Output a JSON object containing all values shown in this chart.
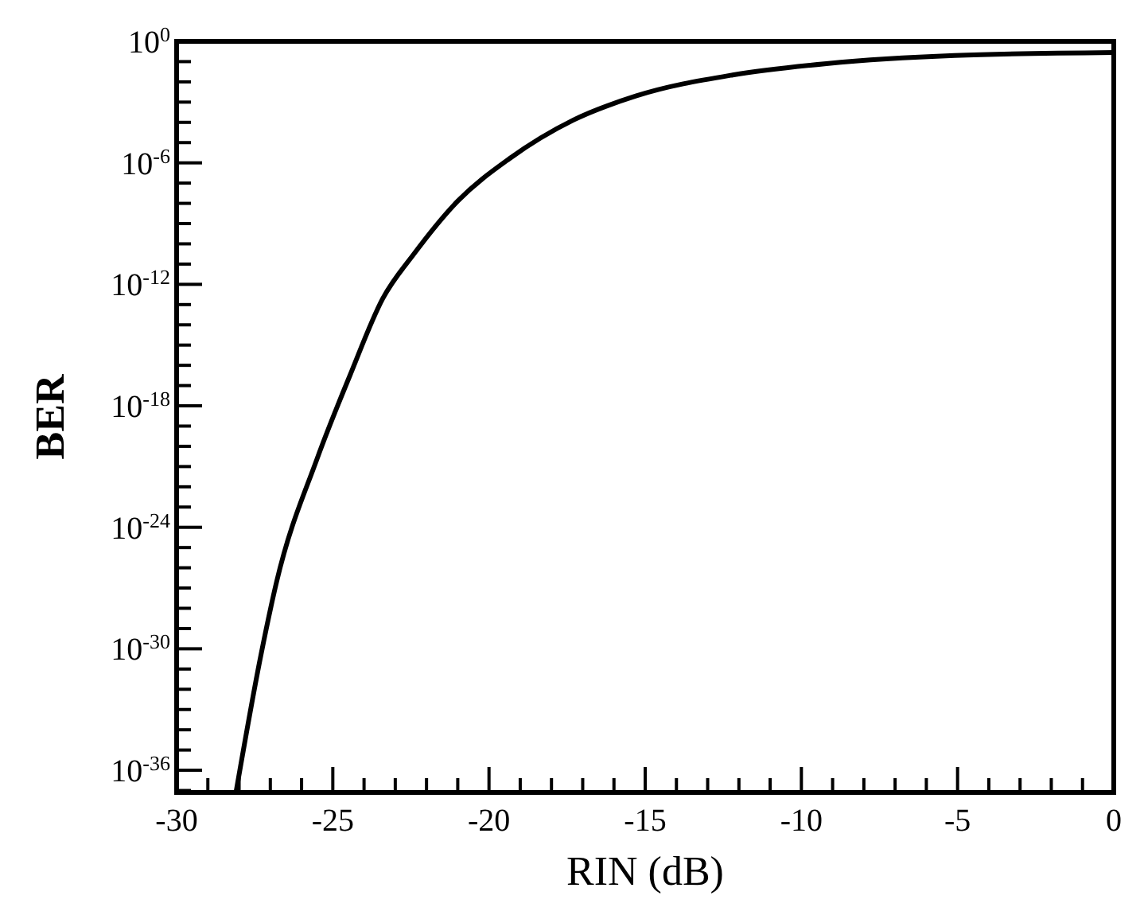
{
  "chart_data": {
    "type": "line",
    "xlabel": "RIN (dB)",
    "ylabel": "BER",
    "log": "y",
    "grid": false,
    "marker": "none",
    "line_style": "solid",
    "x": [
      -28.1,
      -27.3,
      -26.8,
      -25.5,
      -24.45,
      -23.4,
      -22.4,
      -21.0,
      -19.35,
      -17.3,
      -15.3,
      -12.2,
      -9.2,
      -5.1,
      0
    ],
    "series": [
      {
        "color": "#000000",
        "values": [
          8e-38,
          5e-31,
          2e-27,
          2.5e-21,
          3.2e-17,
          2e-13,
          3.2e-11,
          1.3e-08,
          1.6e-06,
          0.00013,
          0.002,
          0.022,
          0.08,
          0.2,
          0.28
        ]
      }
    ],
    "xlim": [
      -30,
      0
    ],
    "ylim": [
      8e-38,
      1
    ],
    "xticks": [
      -30,
      {
        "value": -29,
        "label": null
      },
      {
        "value": -28,
        "label": null
      },
      {
        "value": -27,
        "label": null
      },
      {
        "value": -26,
        "label": null
      },
      -25,
      {
        "value": -24,
        "label": null
      },
      {
        "value": -23,
        "label": null
      },
      {
        "value": -22,
        "label": null
      },
      {
        "value": -21,
        "label": null
      },
      -20,
      {
        "value": -19,
        "label": null
      },
      {
        "value": -18,
        "label": null
      },
      {
        "value": -17,
        "label": null
      },
      {
        "value": -16,
        "label": null
      },
      -15,
      {
        "value": -14,
        "label": null
      },
      {
        "value": -13,
        "label": null
      },
      {
        "value": -12,
        "label": null
      },
      {
        "value": -11,
        "label": null
      },
      -10,
      {
        "value": -9,
        "label": null
      },
      {
        "value": -8,
        "label": null
      },
      {
        "value": -7,
        "label": null
      },
      {
        "value": -6,
        "label": null
      },
      -5,
      {
        "value": -4,
        "label": null
      },
      {
        "value": -3,
        "label": null
      },
      {
        "value": -2,
        "label": null
      },
      {
        "value": -1,
        "label": null
      },
      0
    ],
    "yticks": [
      {
        "value": 1,
        "label": "10$^{0}$"
      },
      {
        "value": 0.1,
        "label": null
      },
      {
        "value": 0.01,
        "label": null
      },
      {
        "value": 0.001,
        "label": null
      },
      {
        "value": 0.0001,
        "label": null
      },
      {
        "value": 1e-05,
        "label": null
      },
      {
        "value": 1e-06,
        "label": "10$^{-6}$"
      },
      {
        "value": 1e-07,
        "label": null
      },
      {
        "value": 1e-08,
        "label": null
      },
      {
        "value": 1e-09,
        "label": null
      },
      {
        "value": 1e-10,
        "label": null
      },
      {
        "value": 1e-11,
        "label": null
      },
      {
        "value": 1e-12,
        "label": "10$^{-12}$"
      },
      {
        "value": 1e-13,
        "label": null
      },
      {
        "value": 1e-14,
        "label": null
      },
      {
        "value": 1e-15,
        "label": null
      },
      {
        "value": 1e-16,
        "label": null
      },
      {
        "value": 1e-17,
        "label": null
      },
      {
        "value": 1e-18,
        "label": "10$^{-18}$"
      },
      {
        "value": 1e-19,
        "label": null
      },
      {
        "value": 1e-20,
        "label": null
      },
      {
        "value": 1e-21,
        "label": null
      },
      {
        "value": 1e-22,
        "label": null
      },
      {
        "value": 1e-23,
        "label": null
      },
      {
        "value": 1e-24,
        "label": "10$^{-24}$"
      },
      {
        "value": 1e-25,
        "label": null
      },
      {
        "value": 1e-26,
        "label": null
      },
      {
        "value": 1e-27,
        "label": null
      },
      {
        "value": 1e-28,
        "label": null
      },
      {
        "value": 1e-29,
        "label": null
      },
      {
        "value": 1e-30,
        "label": "10$^{-30}$"
      },
      {
        "value": 1e-31,
        "label": null
      },
      {
        "value": 1e-32,
        "label": null
      },
      {
        "value": 1e-33,
        "label": null
      },
      {
        "value": 1e-34,
        "label": null
      },
      {
        "value": 1e-35,
        "label": null
      },
      {
        "value": 1e-36,
        "label": "10$^{-36}$"
      },
      {
        "value": 1e-37,
        "label": null
      }
    ]
  }
}
